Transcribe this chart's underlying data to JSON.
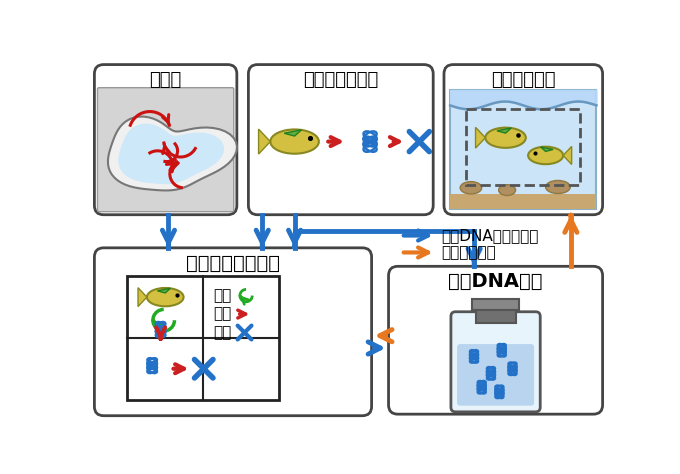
{
  "box_labels": {
    "ryudoba": "流動場",
    "hoshutsu": "放出率・分解率",
    "kotaisuu": "生物の個体数",
    "tracer": "トレーサーモデル",
    "kankyo": "環境DNA濃度"
  },
  "legend_labels": {
    "hoshutu_legend": "放出",
    "ido_legend": "移動",
    "bunkai_legend": "分解"
  },
  "arrow_legend": {
    "blue": "環境DNA濃度の予測",
    "orange": "個体数の推定"
  },
  "colors": {
    "blue_arrow": "#2472c8",
    "orange_arrow": "#e87820",
    "red_arrow": "#cc2020",
    "green_arc": "#22aa22",
    "blue_x": "#2472c8"
  },
  "fig_bg": "#ffffff"
}
